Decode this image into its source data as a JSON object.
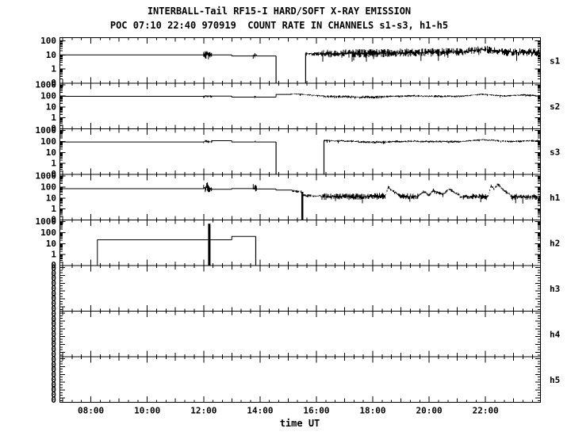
{
  "chart_data": {
    "type": "line",
    "title": "INTERBALL-Tail RF15-I HARD/SOFT X-RAY EMISSION",
    "subtitle": "POC 07:10 22:40 970919  COUNT RATE IN CHANNELS s1-s3, h1-h5",
    "background": "#ffffff",
    "line_color": "#000000",
    "x_axis": {
      "label": "time UT",
      "start_hour": 6.9,
      "end_hour": 23.95,
      "major_ticks": [
        {
          "h": 8,
          "text": "08:00"
        },
        {
          "h": 10,
          "text": "10:00"
        },
        {
          "h": 12,
          "text": "12:00"
        },
        {
          "h": 14,
          "text": "14:00"
        },
        {
          "h": 16,
          "text": "16:00"
        },
        {
          "h": 18,
          "text": "18:00"
        },
        {
          "h": 20,
          "text": "20:00"
        },
        {
          "h": 22,
          "text": "22:00"
        }
      ],
      "medium_tick_minutes": 60,
      "minor_tick_minutes": 20
    },
    "panels": [
      {
        "id": "s1",
        "label": "s1",
        "scale": "log",
        "ylabels": [
          {
            "text": "100",
            "v": 100
          },
          {
            "text": "10",
            "v": 10
          },
          {
            "text": "1",
            "v": 1
          },
          {
            "text": "0",
            "v": null
          }
        ],
        "segments": [
          {
            "kind": "flat",
            "t0": 6.9,
            "t1": 12.0,
            "v": 10
          },
          {
            "kind": "noise",
            "t0": 12.0,
            "t1": 12.3,
            "v0": 10,
            "v1": 10,
            "s": 0.33
          },
          {
            "kind": "flat",
            "t0": 12.3,
            "t1": 13.0,
            "v": 10
          },
          {
            "kind": "flat",
            "t0": 13.0,
            "t1": 13.76,
            "v": 8.5
          },
          {
            "kind": "noise",
            "t0": 13.76,
            "t1": 13.88,
            "v0": 9,
            "v1": 9,
            "s": 0.25
          },
          {
            "kind": "flat",
            "t0": 13.88,
            "t1": 14.57,
            "v": 8.5
          },
          {
            "kind": "vline",
            "t": 14.57,
            "va": 8.5,
            "vb": 0.1
          },
          {
            "kind": "gap"
          },
          {
            "kind": "vline",
            "t": 15.62,
            "va": 0.1,
            "vb": 12
          },
          {
            "kind": "noise",
            "t0": 15.62,
            "t1": 16.2,
            "v0": 12,
            "v1": 12,
            "s": 0.14
          },
          {
            "kind": "noise",
            "t0": 16.2,
            "t1": 18.5,
            "v0": 12,
            "v1": 14,
            "s": 0.3
          },
          {
            "kind": "noise",
            "t0": 18.5,
            "t1": 21.2,
            "v0": 14,
            "v1": 16,
            "s": 0.3
          },
          {
            "kind": "noise",
            "t0": 21.2,
            "t1": 21.9,
            "v0": 16,
            "v1": 26,
            "s": 0.28
          },
          {
            "kind": "noise",
            "t0": 21.9,
            "t1": 22.6,
            "v0": 26,
            "v1": 18,
            "s": 0.28
          },
          {
            "kind": "noise",
            "t0": 22.6,
            "t1": 23.95,
            "v0": 16,
            "v1": 15,
            "s": 0.3
          }
        ]
      },
      {
        "id": "s2",
        "label": "s2",
        "scale": "log",
        "ylabels": [
          {
            "text": "1000",
            "v": 1000
          },
          {
            "text": "100",
            "v": 100
          },
          {
            "text": "10",
            "v": 10
          },
          {
            "text": "1",
            "v": 1
          },
          {
            "text": "0",
            "v": null
          }
        ],
        "segments": [
          {
            "kind": "flat",
            "t0": 6.9,
            "t1": 12.0,
            "v": 90
          },
          {
            "kind": "noise",
            "t0": 12.0,
            "t1": 12.3,
            "v0": 92,
            "v1": 92,
            "s": 0.12
          },
          {
            "kind": "flat",
            "t0": 12.3,
            "t1": 13.0,
            "v": 95
          },
          {
            "kind": "flat",
            "t0": 13.0,
            "t1": 13.78,
            "v": 76
          },
          {
            "kind": "noise",
            "t0": 13.78,
            "t1": 13.86,
            "v0": 78,
            "v1": 78,
            "s": 0.12
          },
          {
            "kind": "flat",
            "t0": 13.86,
            "t1": 14.57,
            "v": 76
          },
          {
            "kind": "flat",
            "t0": 14.57,
            "t1": 15.1,
            "v": 135
          },
          {
            "kind": "noise",
            "t0": 15.1,
            "t1": 15.4,
            "v0": 150,
            "v1": 145,
            "s": 0.05
          },
          {
            "kind": "noise",
            "t0": 15.4,
            "t1": 16.3,
            "v0": 140,
            "v1": 95,
            "s": 0.07
          },
          {
            "kind": "noise",
            "t0": 16.3,
            "t1": 17.4,
            "v0": 88,
            "v1": 80,
            "s": 0.12
          },
          {
            "kind": "noise",
            "t0": 17.4,
            "t1": 18.3,
            "v0": 75,
            "v1": 78,
            "s": 0.13
          },
          {
            "kind": "noise",
            "t0": 18.3,
            "t1": 19.5,
            "v0": 85,
            "v1": 100,
            "s": 0.1
          },
          {
            "kind": "noise",
            "t0": 19.5,
            "t1": 21.1,
            "v0": 95,
            "v1": 90,
            "s": 0.1
          },
          {
            "kind": "noise",
            "t0": 21.1,
            "t1": 21.9,
            "v0": 92,
            "v1": 140,
            "s": 0.07
          },
          {
            "kind": "noise",
            "t0": 21.9,
            "t1": 22.7,
            "v0": 140,
            "v1": 95,
            "s": 0.08
          },
          {
            "kind": "noise",
            "t0": 22.7,
            "t1": 23.4,
            "v0": 95,
            "v1": 125,
            "s": 0.08
          },
          {
            "kind": "noise",
            "t0": 23.4,
            "t1": 23.95,
            "v0": 120,
            "v1": 95,
            "s": 0.09
          }
        ]
      },
      {
        "id": "s3",
        "label": "s3",
        "scale": "log",
        "ylabels": [
          {
            "text": "1000",
            "v": 1000
          },
          {
            "text": "100",
            "v": 100
          },
          {
            "text": "10",
            "v": 10
          },
          {
            "text": "1",
            "v": 1
          },
          {
            "text": "0",
            "v": null
          }
        ],
        "segments": [
          {
            "kind": "flat",
            "t0": 6.9,
            "t1": 12.0,
            "v": 88
          },
          {
            "kind": "noise",
            "t0": 12.0,
            "t1": 12.3,
            "v0": 95,
            "v1": 95,
            "s": 0.15
          },
          {
            "kind": "flat",
            "t0": 12.3,
            "t1": 13.0,
            "v": 115
          },
          {
            "kind": "flat",
            "t0": 13.0,
            "t1": 13.78,
            "v": 88
          },
          {
            "kind": "noise",
            "t0": 13.78,
            "t1": 13.86,
            "v0": 88,
            "v1": 88,
            "s": 0.13
          },
          {
            "kind": "flat",
            "t0": 13.86,
            "t1": 14.57,
            "v": 88
          },
          {
            "kind": "vline",
            "t": 14.57,
            "va": 88,
            "vb": 0.1
          },
          {
            "kind": "gap"
          },
          {
            "kind": "vline",
            "t": 16.27,
            "va": 0.1,
            "vb": 125
          },
          {
            "kind": "noise",
            "t0": 16.27,
            "t1": 17.5,
            "v0": 120,
            "v1": 100,
            "s": 0.1
          },
          {
            "kind": "noise",
            "t0": 17.5,
            "t1": 18.6,
            "v0": 90,
            "v1": 85,
            "s": 0.12
          },
          {
            "kind": "noise",
            "t0": 18.6,
            "t1": 19.6,
            "v0": 95,
            "v1": 105,
            "s": 0.1
          },
          {
            "kind": "noise",
            "t0": 19.6,
            "t1": 21.1,
            "v0": 98,
            "v1": 95,
            "s": 0.1
          },
          {
            "kind": "noise",
            "t0": 21.1,
            "t1": 21.9,
            "v0": 98,
            "v1": 145,
            "s": 0.07
          },
          {
            "kind": "noise",
            "t0": 21.9,
            "t1": 22.8,
            "v0": 140,
            "v1": 100,
            "s": 0.09
          },
          {
            "kind": "noise",
            "t0": 22.8,
            "t1": 23.95,
            "v0": 100,
            "v1": 115,
            "s": 0.09
          }
        ]
      },
      {
        "id": "h1",
        "label": "h1",
        "scale": "log",
        "ylabels": [
          {
            "text": "1000",
            "v": 1000
          },
          {
            "text": "100",
            "v": 100
          },
          {
            "text": "10",
            "v": 10
          },
          {
            "text": "1",
            "v": 1
          },
          {
            "text": "0",
            "v": null
          }
        ],
        "segments": [
          {
            "kind": "flat",
            "t0": 6.9,
            "t1": 12.0,
            "v": 70
          },
          {
            "kind": "noise",
            "t0": 12.0,
            "t1": 12.08,
            "v0": 75,
            "v1": 75,
            "s": 0.35
          },
          {
            "kind": "noise",
            "t0": 12.08,
            "t1": 12.22,
            "v0": 90,
            "v1": 90,
            "s": 0.58
          },
          {
            "kind": "noise",
            "t0": 12.22,
            "t1": 12.3,
            "v0": 70,
            "v1": 70,
            "s": 0.3
          },
          {
            "kind": "flat",
            "t0": 12.3,
            "t1": 13.0,
            "v": 62
          },
          {
            "kind": "flat",
            "t0": 13.0,
            "t1": 13.76,
            "v": 72
          },
          {
            "kind": "noise",
            "t0": 13.76,
            "t1": 13.88,
            "v0": 80,
            "v1": 80,
            "s": 0.42
          },
          {
            "kind": "flat",
            "t0": 13.88,
            "t1": 14.57,
            "v": 66
          },
          {
            "kind": "flat",
            "t0": 14.57,
            "t1": 15.15,
            "v": 52
          },
          {
            "kind": "noise",
            "t0": 15.15,
            "t1": 15.48,
            "v0": 45,
            "v1": 36,
            "s": 0.12
          },
          {
            "kind": "vline",
            "t": 15.5,
            "va": 36,
            "vb": 0.1,
            "w": 2.5
          },
          {
            "kind": "vline",
            "t": 15.5,
            "va": 0.1,
            "vb": 17
          },
          {
            "kind": "noise",
            "t0": 15.52,
            "t1": 16.2,
            "v0": 17,
            "v1": 15,
            "s": 0.12
          },
          {
            "kind": "noise",
            "t0": 16.2,
            "t1": 17.9,
            "v0": 13,
            "v1": 13,
            "s": 0.3
          },
          {
            "kind": "noise",
            "t0": 17.9,
            "t1": 18.45,
            "v0": 14,
            "v1": 16,
            "s": 0.28
          },
          {
            "kind": "noise",
            "t0": 18.45,
            "t1": 18.55,
            "v0": 20,
            "v1": 90,
            "s": 0.12
          },
          {
            "kind": "noise",
            "t0": 18.55,
            "t1": 18.95,
            "v0": 90,
            "v1": 16,
            "s": 0.18
          },
          {
            "kind": "noise",
            "t0": 18.95,
            "t1": 19.6,
            "v0": 14,
            "v1": 14,
            "s": 0.28
          },
          {
            "kind": "noise",
            "t0": 19.6,
            "t1": 19.8,
            "v0": 14,
            "v1": 38,
            "s": 0.12
          },
          {
            "kind": "noise",
            "t0": 19.8,
            "t1": 20.0,
            "v0": 38,
            "v1": 18,
            "s": 0.16
          },
          {
            "kind": "noise",
            "t0": 20.0,
            "t1": 20.15,
            "v0": 18,
            "v1": 50,
            "s": 0.12
          },
          {
            "kind": "noise",
            "t0": 20.15,
            "t1": 20.5,
            "v0": 50,
            "v1": 20,
            "s": 0.16
          },
          {
            "kind": "noise",
            "t0": 20.5,
            "t1": 20.7,
            "v0": 20,
            "v1": 65,
            "s": 0.12
          },
          {
            "kind": "noise",
            "t0": 20.7,
            "t1": 21.1,
            "v0": 65,
            "v1": 16,
            "s": 0.16
          },
          {
            "kind": "noise",
            "t0": 21.1,
            "t1": 22.1,
            "v0": 13,
            "v1": 14,
            "s": 0.28
          },
          {
            "kind": "noise",
            "t0": 22.1,
            "t1": 22.2,
            "v0": 15,
            "v1": 140,
            "s": 0.08
          },
          {
            "kind": "noise",
            "t0": 22.2,
            "t1": 22.3,
            "v0": 140,
            "v1": 60,
            "s": 0.12
          },
          {
            "kind": "noise",
            "t0": 22.3,
            "t1": 22.42,
            "v0": 60,
            "v1": 180,
            "s": 0.08
          },
          {
            "kind": "noise",
            "t0": 22.42,
            "t1": 22.9,
            "v0": 180,
            "v1": 16,
            "s": 0.16
          },
          {
            "kind": "noise",
            "t0": 22.9,
            "t1": 23.95,
            "v0": 13,
            "v1": 12,
            "s": 0.28
          }
        ]
      },
      {
        "id": "h2",
        "label": "h2",
        "scale": "log",
        "ylabels": [
          {
            "text": "1000",
            "v": 1000
          },
          {
            "text": "100",
            "v": 100
          },
          {
            "text": "10",
            "v": 10
          },
          {
            "text": "1",
            "v": 1
          },
          {
            "text": "0",
            "v": null
          }
        ],
        "segments": [
          {
            "kind": "flat",
            "t0": 6.9,
            "t1": 8.23,
            "v": 0.1
          },
          {
            "kind": "flat",
            "t0": 8.23,
            "t1": 12.18,
            "v": 22
          },
          {
            "kind": "vline",
            "t": 12.2,
            "va": 640,
            "vb": 0.1,
            "w": 3
          },
          {
            "kind": "flat",
            "t0": 12.22,
            "t1": 13.0,
            "v": 22
          },
          {
            "kind": "flat",
            "t0": 13.0,
            "t1": 13.85,
            "v": 45
          },
          {
            "kind": "vline",
            "t": 13.85,
            "va": 45,
            "vb": 0.1
          },
          {
            "kind": "flat",
            "t0": 13.85,
            "t1": 23.95,
            "v": 0.1
          }
        ]
      },
      {
        "id": "h3",
        "label": "h3",
        "scale": "zero",
        "zero_label": "0",
        "zero_label_count": 9,
        "segments": []
      },
      {
        "id": "h4",
        "label": "h4",
        "scale": "zero",
        "zero_label": "0",
        "zero_label_count": 9,
        "segments": []
      },
      {
        "id": "h5",
        "label": "h5",
        "scale": "zero",
        "zero_label": "0",
        "zero_label_count": 9,
        "segments": []
      }
    ]
  }
}
